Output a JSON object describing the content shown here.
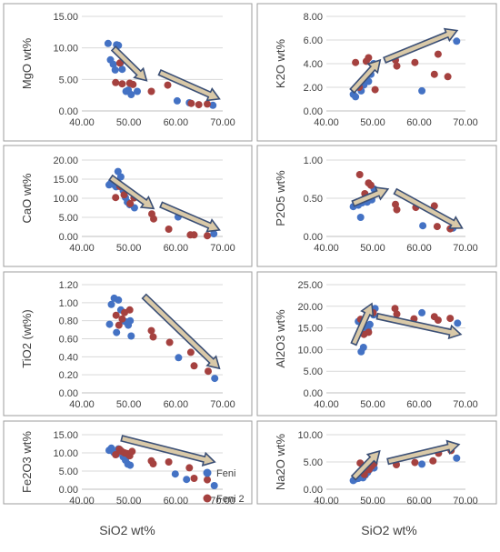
{
  "colors": {
    "feni": "#4472C4",
    "feni2": "#A5413F",
    "arrow_fill": "#D9C9A8",
    "arrow_stroke": "#3B4F75",
    "grid": "#D9D9D9",
    "axis": "#BFBFBF",
    "panel_border": "#9E9E9E"
  },
  "legend": {
    "placement": "between-bottom-panels",
    "entries": [
      {
        "key": "feni",
        "label": "Feni"
      },
      {
        "key": "feni2",
        "label": "Feni 2"
      }
    ]
  },
  "common_xlabel": "SiO2  wt%",
  "chart_data": [
    {
      "type": "scatter",
      "ylabel": "MgO  wt%",
      "xlim": [
        40,
        70
      ],
      "ylim": [
        0,
        15
      ],
      "xticks": [
        "40.00",
        "50.00",
        "60.00",
        "70.00"
      ],
      "yticks": [
        "0.00",
        "5.00",
        "10.00",
        "15.00"
      ],
      "grid": true,
      "series": [
        {
          "key": "feni",
          "points": [
            [
              45.6,
              10.7
            ],
            [
              46.1,
              8.1
            ],
            [
              46.7,
              7.4
            ],
            [
              47.1,
              6.5
            ],
            [
              47.4,
              10.5
            ],
            [
              47.8,
              10.4
            ],
            [
              48.2,
              7.6
            ],
            [
              48.6,
              6.6
            ],
            [
              49.4,
              3.1
            ],
            [
              49.9,
              3.3
            ],
            [
              50.5,
              2.6
            ],
            [
              51.8,
              3.1
            ],
            [
              60.3,
              1.6
            ],
            [
              62.9,
              1.3
            ],
            [
              67.9,
              0.9
            ]
          ]
        },
        {
          "key": "feni2",
          "points": [
            [
              47.2,
              4.5
            ],
            [
              48.1,
              7.6
            ],
            [
              48.6,
              4.3
            ],
            [
              50.2,
              4.4
            ],
            [
              50.9,
              4.2
            ],
            [
              54.8,
              3.1
            ],
            [
              58.3,
              4.1
            ],
            [
              63.3,
              1.2
            ],
            [
              64.9,
              1.0
            ],
            [
              66.7,
              1.1
            ]
          ]
        }
      ],
      "arrows": [
        [
          [
            46.8,
            9.9
          ],
          [
            53.8,
            4.8
          ]
        ],
        [
          [
            56.6,
            6.1
          ],
          [
            69.3,
            1.9
          ]
        ]
      ]
    },
    {
      "type": "scatter",
      "ylabel": "K2O  wt%",
      "xlim": [
        40,
        70
      ],
      "ylim": [
        0,
        8
      ],
      "xticks": [
        "40.00",
        "50.00",
        "60.00",
        "70.00"
      ],
      "yticks": [
        "0.00",
        "2.00",
        "4.00",
        "6.00",
        "8.00"
      ],
      "grid": true,
      "series": [
        {
          "key": "feni",
          "points": [
            [
              45.8,
              1.4
            ],
            [
              46.3,
              1.2
            ],
            [
              46.8,
              2.1
            ],
            [
              47.5,
              1.7
            ],
            [
              48.1,
              2.2
            ],
            [
              48.6,
              2.8
            ],
            [
              49.1,
              2.5
            ],
            [
              49.6,
              3.1
            ],
            [
              50.2,
              4.0
            ],
            [
              50.6,
              3.8
            ],
            [
              60.6,
              1.7
            ],
            [
              68.1,
              5.9
            ]
          ]
        },
        {
          "key": "feni2",
          "points": [
            [
              46.3,
              4.1
            ],
            [
              47.1,
              2.0
            ],
            [
              48.6,
              4.2
            ],
            [
              49.1,
              4.5
            ],
            [
              50.5,
              1.8
            ],
            [
              54.9,
              4.3
            ],
            [
              55.2,
              3.8
            ],
            [
              59.1,
              4.1
            ],
            [
              63.3,
              3.1
            ],
            [
              64.1,
              4.8
            ],
            [
              66.2,
              2.9
            ]
          ]
        }
      ],
      "arrows": [
        [
          [
            45.6,
            1.7
          ],
          [
            51.6,
            4.3
          ]
        ],
        [
          [
            52.6,
            4.3
          ],
          [
            68.2,
            6.8
          ]
        ]
      ]
    },
    {
      "type": "scatter",
      "ylabel": "CaO  wt%",
      "xlim": [
        40,
        70
      ],
      "ylim": [
        0,
        20
      ],
      "xticks": [
        "40.00",
        "50.00",
        "60.00",
        "70.00"
      ],
      "yticks": [
        "0.00",
        "5.00",
        "10.00",
        "15.00",
        "20.00"
      ],
      "grid": true,
      "series": [
        {
          "key": "feni",
          "points": [
            [
              45.8,
              13.5
            ],
            [
              46.2,
              14.0
            ],
            [
              46.8,
              13.6
            ],
            [
              47.3,
              13.0
            ],
            [
              47.7,
              17.0
            ],
            [
              48.3,
              15.6
            ],
            [
              48.8,
              12.0
            ],
            [
              49.3,
              10.2
            ],
            [
              49.7,
              9.0
            ],
            [
              50.2,
              8.3
            ],
            [
              51.2,
              7.5
            ],
            [
              60.5,
              5.1
            ],
            [
              68.1,
              0.7
            ]
          ]
        },
        {
          "key": "feni2",
          "points": [
            [
              47.2,
              10.2
            ],
            [
              48.1,
              13.1
            ],
            [
              49.0,
              10.9
            ],
            [
              50.3,
              8.6
            ],
            [
              51.1,
              10.1
            ],
            [
              54.9,
              5.9
            ],
            [
              55.3,
              4.6
            ],
            [
              58.5,
              1.9
            ],
            [
              63.1,
              0.4
            ],
            [
              63.9,
              0.4
            ],
            [
              66.7,
              0.2
            ]
          ]
        }
      ],
      "arrows": [
        [
          [
            46.2,
            15.4
          ],
          [
            55.3,
            7.3
          ]
        ],
        [
          [
            56.9,
            8.3
          ],
          [
            69.3,
            1.7
          ]
        ]
      ]
    },
    {
      "type": "scatter",
      "ylabel": "P2O5  wt%",
      "xlim": [
        40,
        70
      ],
      "ylim": [
        0,
        1
      ],
      "xticks": [
        "40.00",
        "50.00",
        "60.00",
        "70.00"
      ],
      "yticks": [
        "0.00",
        "0.50",
        "1.00"
      ],
      "grid": true,
      "series": [
        {
          "key": "feni",
          "points": [
            [
              45.8,
              0.39
            ],
            [
              46.4,
              0.43
            ],
            [
              46.9,
              0.41
            ],
            [
              47.4,
              0.25
            ],
            [
              47.7,
              0.44
            ],
            [
              48.3,
              0.46
            ],
            [
              48.8,
              0.45
            ],
            [
              49.3,
              0.52
            ],
            [
              49.8,
              0.48
            ],
            [
              50.3,
              0.62
            ],
            [
              60.8,
              0.14
            ],
            [
              67.3,
              0.11
            ]
          ]
        },
        {
          "key": "feni2",
          "points": [
            [
              47.2,
              0.81
            ],
            [
              48.3,
              0.56
            ],
            [
              49.1,
              0.7
            ],
            [
              49.6,
              0.67
            ],
            [
              54.9,
              0.42
            ],
            [
              55.2,
              0.35
            ],
            [
              59.3,
              0.38
            ],
            [
              63.3,
              0.4
            ],
            [
              63.9,
              0.13
            ],
            [
              66.7,
              0.1
            ]
          ]
        }
      ],
      "arrows": [
        [
          [
            45.8,
            0.43
          ],
          [
            53.3,
            0.62
          ]
        ],
        [
          [
            54.9,
            0.59
          ],
          [
            69.3,
            0.11
          ]
        ]
      ]
    },
    {
      "type": "scatter",
      "ylabel": "TiO2  (wt%)",
      "xlim": [
        40,
        70
      ],
      "ylim": [
        0,
        1.2
      ],
      "xticks": [
        "40.00",
        "50.00",
        "60.00",
        "70.00"
      ],
      "yticks": [
        "0.00",
        "0.20",
        "0.40",
        "0.60",
        "0.80",
        "1.00",
        "1.20"
      ],
      "grid": true,
      "series": [
        {
          "key": "feni",
          "points": [
            [
              45.9,
              0.76
            ],
            [
              46.3,
              0.98
            ],
            [
              46.9,
              1.05
            ],
            [
              47.4,
              0.67
            ],
            [
              47.8,
              1.03
            ],
            [
              48.3,
              0.92
            ],
            [
              48.8,
              0.8
            ],
            [
              49.3,
              0.79
            ],
            [
              49.9,
              0.75
            ],
            [
              50.3,
              0.8
            ],
            [
              50.5,
              0.63
            ],
            [
              60.6,
              0.39
            ],
            [
              68.3,
              0.16
            ]
          ]
        },
        {
          "key": "feni2",
          "points": [
            [
              47.3,
              0.86
            ],
            [
              47.9,
              0.75
            ],
            [
              48.6,
              0.82
            ],
            [
              49.1,
              0.89
            ],
            [
              50.2,
              0.92
            ],
            [
              54.8,
              0.69
            ],
            [
              55.2,
              0.62
            ],
            [
              58.7,
              0.56
            ],
            [
              63.2,
              0.45
            ],
            [
              63.9,
              0.3
            ],
            [
              66.9,
              0.24
            ]
          ]
        }
      ],
      "arrows": [
        [
          [
            53.3,
            1.07
          ],
          [
            69.3,
            0.27
          ]
        ]
      ]
    },
    {
      "type": "scatter",
      "ylabel": "Al2O3  wt%",
      "xlim": [
        40,
        70
      ],
      "ylim": [
        0,
        25
      ],
      "xticks": [
        "40.00",
        "50.00",
        "60.00",
        "70.00"
      ],
      "yticks": [
        "0.00",
        "5.00",
        "10.00",
        "15.00",
        "20.00",
        "25.00"
      ],
      "grid": true,
      "series": [
        {
          "key": "feni",
          "points": [
            [
              46.9,
              16.5
            ],
            [
              47.5,
              9.5
            ],
            [
              48.0,
              10.5
            ],
            [
              48.5,
              15.0
            ],
            [
              49.0,
              14.5
            ],
            [
              49.4,
              15.8
            ],
            [
              50.2,
              18.0
            ],
            [
              50.5,
              19.5
            ],
            [
              60.6,
              18.5
            ],
            [
              68.3,
              16.1
            ]
          ]
        },
        {
          "key": "feni2",
          "points": [
            [
              47.4,
              17.0
            ],
            [
              48.1,
              13.5
            ],
            [
              49.1,
              14.0
            ],
            [
              50.1,
              18.5
            ],
            [
              54.8,
              19.5
            ],
            [
              55.2,
              18.2
            ],
            [
              58.9,
              17.1
            ],
            [
              63.3,
              17.6
            ],
            [
              64.1,
              16.8
            ],
            [
              66.7,
              17.2
            ]
          ]
        }
      ],
      "arrows": [
        [
          [
            45.9,
            11.3
          ],
          [
            49.8,
            20.6
          ]
        ],
        [
          [
            51.0,
            17.7
          ],
          [
            69.0,
            13.5
          ]
        ]
      ]
    },
    {
      "type": "scatter",
      "ylabel": "Fe2O3  wt%",
      "xlim": [
        40,
        70
      ],
      "ylim": [
        0,
        15
      ],
      "xticks": [
        "40.00",
        "50.00",
        "60.00",
        "70.00"
      ],
      "yticks": [
        "0.00",
        "5.00",
        "10.00",
        "15.00"
      ],
      "grid": true,
      "series": [
        {
          "key": "feni",
          "points": [
            [
              45.8,
              10.7
            ],
            [
              46.3,
              11.3
            ],
            [
              46.8,
              10.1
            ],
            [
              47.4,
              9.6
            ],
            [
              47.8,
              11.1
            ],
            [
              48.3,
              10.6
            ],
            [
              48.8,
              8.9
            ],
            [
              49.3,
              8.0
            ],
            [
              49.8,
              6.9
            ],
            [
              50.3,
              6.6
            ],
            [
              59.9,
              4.2
            ],
            [
              62.3,
              2.7
            ],
            [
              68.2,
              1.0
            ]
          ]
        },
        {
          "key": "feni2",
          "points": [
            [
              47.2,
              9.5
            ],
            [
              48.0,
              11.0
            ],
            [
              48.5,
              10.4
            ],
            [
              49.1,
              10.0
            ],
            [
              49.6,
              9.8
            ],
            [
              50.2,
              9.2
            ],
            [
              50.7,
              10.4
            ],
            [
              54.8,
              7.8
            ],
            [
              55.2,
              7.0
            ],
            [
              58.5,
              7.5
            ],
            [
              62.9,
              5.9
            ],
            [
              63.9,
              3.0
            ],
            [
              66.7,
              2.6
            ]
          ]
        }
      ],
      "arrows": [
        [
          [
            48.5,
            14.0
          ],
          [
            68.3,
            7.5
          ]
        ]
      ]
    },
    {
      "type": "scatter",
      "ylabel": "Na2O  wt%",
      "xlim": [
        40,
        70
      ],
      "ylim": [
        0,
        10
      ],
      "xticks": [
        "40.00",
        "50.00",
        "60.00",
        "70.00"
      ],
      "yticks": [
        "0.00",
        "5.00",
        "10.00"
      ],
      "grid": true,
      "series": [
        {
          "key": "feni",
          "points": [
            [
              45.8,
              1.6
            ],
            [
              46.4,
              1.9
            ],
            [
              46.9,
              2.0
            ],
            [
              47.4,
              2.4
            ],
            [
              47.9,
              2.1
            ],
            [
              48.4,
              2.6
            ],
            [
              48.9,
              3.1
            ],
            [
              49.3,
              3.6
            ],
            [
              49.8,
              4.0
            ],
            [
              50.3,
              3.9
            ],
            [
              60.6,
              4.6
            ],
            [
              68.1,
              5.7
            ]
          ]
        },
        {
          "key": "feni2",
          "points": [
            [
              47.3,
              4.8
            ],
            [
              48.2,
              2.7
            ],
            [
              49.2,
              3.6
            ],
            [
              49.7,
              4.2
            ],
            [
              50.3,
              4.7
            ],
            [
              55.1,
              4.5
            ],
            [
              59.1,
              4.9
            ],
            [
              63.0,
              5.2
            ],
            [
              64.2,
              6.6
            ],
            [
              66.9,
              7.1
            ]
          ]
        }
      ],
      "arrows": [
        [
          [
            45.9,
            2.1
          ],
          [
            51.5,
            7.0
          ]
        ],
        [
          [
            53.3,
            5.1
          ],
          [
            68.6,
            8.2
          ]
        ]
      ]
    }
  ]
}
